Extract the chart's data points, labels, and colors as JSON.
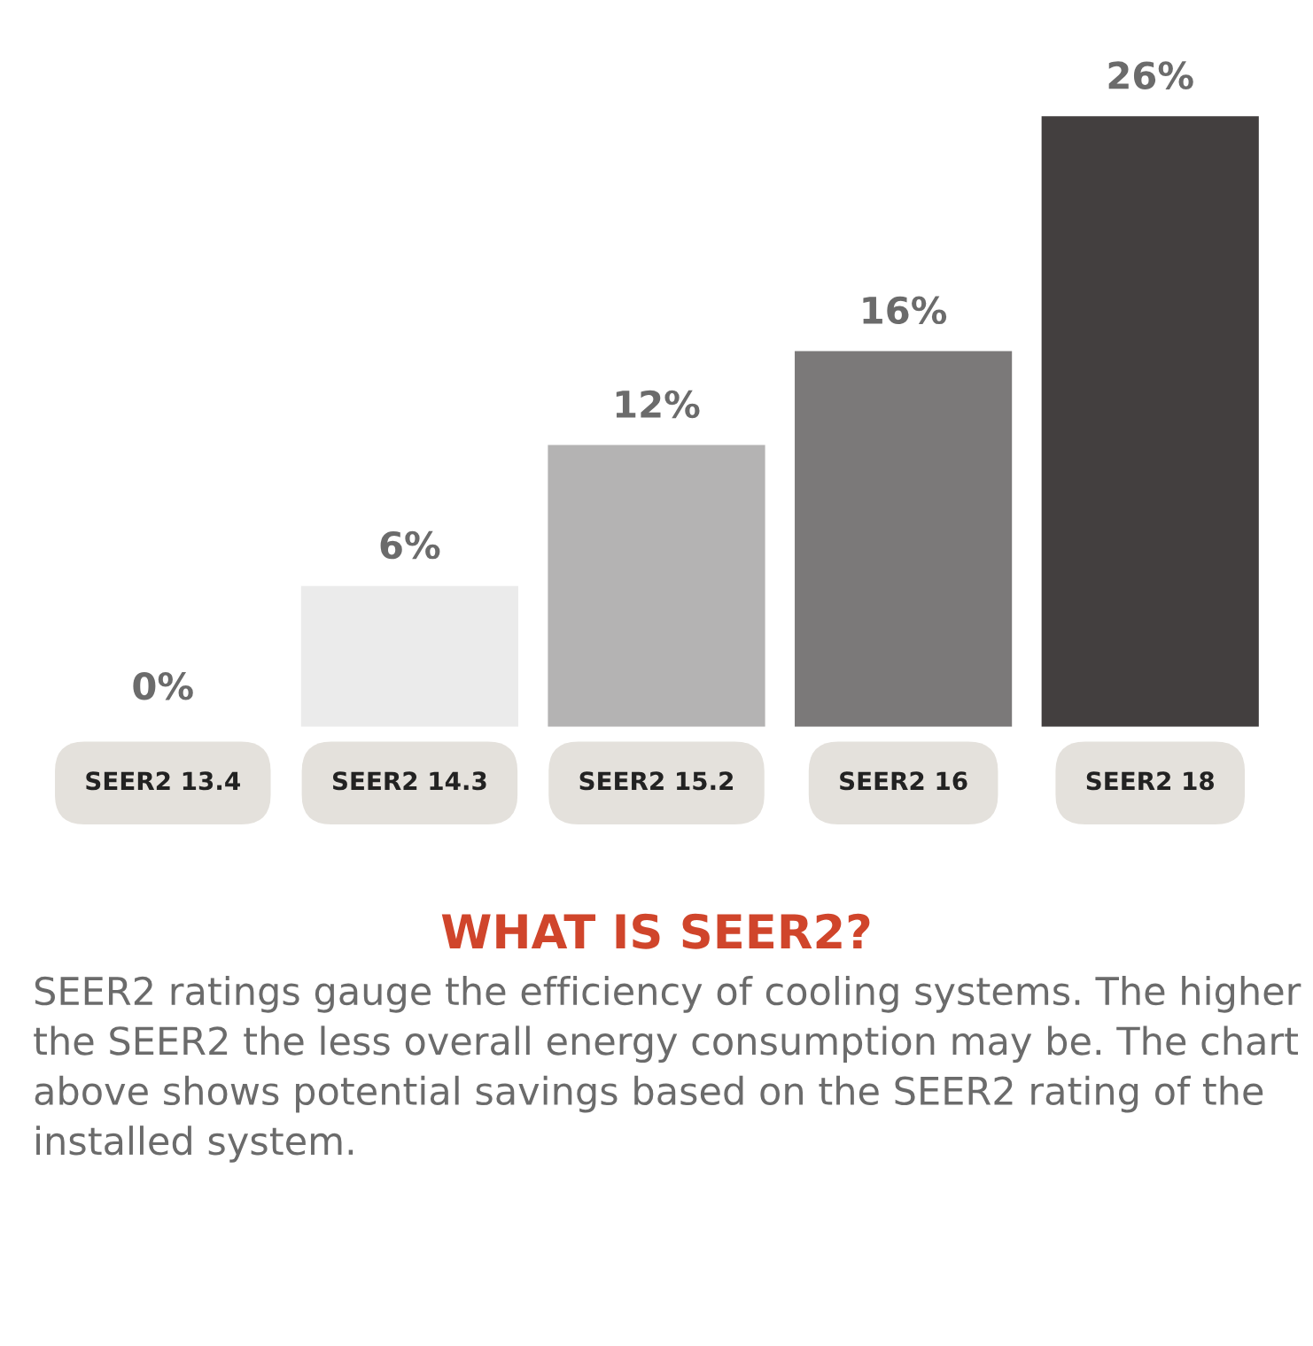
{
  "chart_data": {
    "type": "bar",
    "title": "WHAT IS SEER2?",
    "categories": [
      "SEER2 13.4",
      "SEER2 14.3",
      "SEER2 15.2",
      "SEER2 16",
      "SEER2 18"
    ],
    "values": [
      0,
      6,
      12,
      16,
      26
    ],
    "colors": [
      "#e4e1dc",
      "#ebebeb",
      "#b4b3b3",
      "#7b7979",
      "#433f3f"
    ],
    "value_labels": [
      "0%",
      "6%",
      "12%",
      "16%",
      "26%"
    ],
    "annotations": [
      "SEER2 ratings gauge the efficiency of cooling systems. The higher the SEER2 the less overall energy consumption may be. The chart above shows potential savings based on the SEER2 rating of the installed system."
    ]
  }
}
